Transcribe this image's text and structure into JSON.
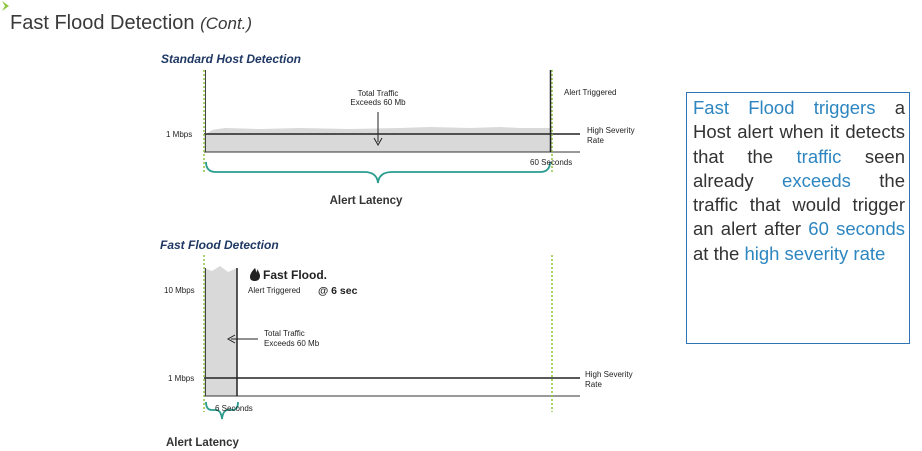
{
  "title": {
    "main": "Fast Flood Detection",
    "cont": "(Cont.)"
  },
  "standard": {
    "title": "Standard Host Detection",
    "y_label": "1 Mbps",
    "total_traffic_line1": "Total Traffic",
    "total_traffic_line2": "Exceeds 60 Mb",
    "alert_triggered": "Alert Triggered",
    "high_severity_line1": "High Severity",
    "high_severity_line2": "Rate",
    "seconds": "60 Seconds",
    "latency": "Alert Latency"
  },
  "fast": {
    "title": "Fast Flood Detection",
    "y_label_top": "10 Mbps",
    "y_label_bottom": "1 Mbps",
    "fast_flood": "Fast Flood.",
    "alert_triggered": "Alert Triggered",
    "at_time": "@ 6 sec",
    "total_traffic_line1": "Total Traffic",
    "total_traffic_line2": "Exceeds 60 Mb",
    "high_severity_line1": "High Severity",
    "high_severity_line2": "Rate",
    "seconds": "6 Seconds",
    "latency": "Alert Latency"
  },
  "note": {
    "p1": "Fast Flood triggers",
    "p2": " a Host alert when it detects that the ",
    "p3": "traffic",
    "p4": " seen already ",
    "p5": "exceeds",
    "p6": " the traffic that would trigger an alert after ",
    "p7": "60 seconds",
    "p8": " at the ",
    "p9": "high severity rate"
  },
  "colors": {
    "accent": "#2e86c1",
    "dash_green": "#8dc63f",
    "heading": "#1f3864",
    "box_border": "#2f74b5",
    "fill": "#d9d9d9"
  },
  "icons": {
    "flame": "flame-icon",
    "corner": "corner-arrow-icon"
  }
}
